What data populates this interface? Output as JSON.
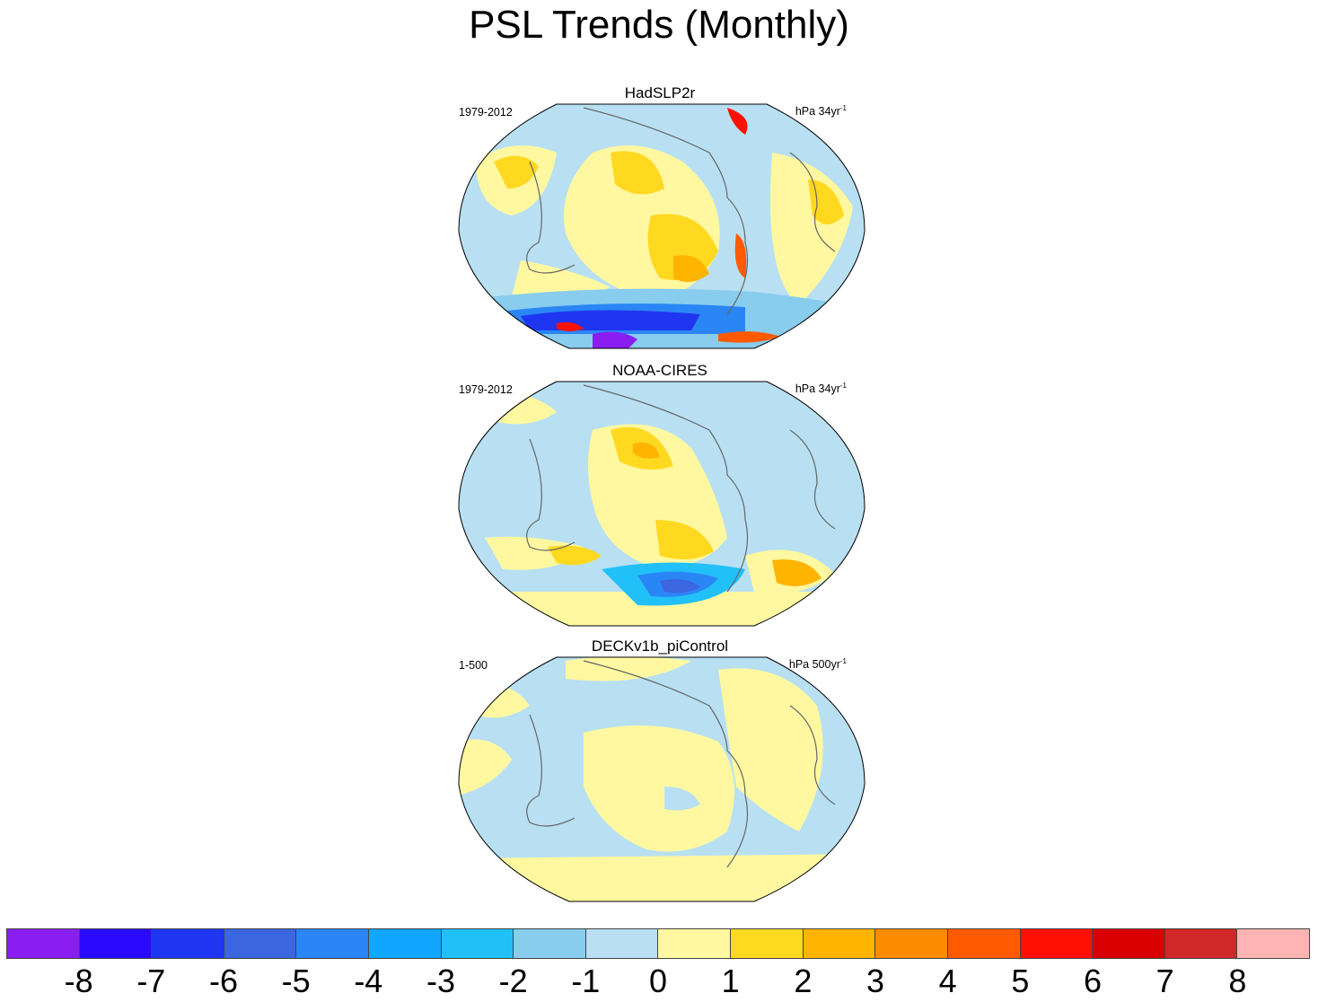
{
  "title": "PSL Trends (Monthly)",
  "panels": [
    {
      "name": "HadSLP2r",
      "period": "1979-2012",
      "units_base": "hPa 34yr",
      "units_exp": "-1"
    },
    {
      "name": "NOAA-CIRES",
      "period": "1979-2012",
      "units_base": "hPa 34yr",
      "units_exp": "-1"
    },
    {
      "name": "DECKv1b_piControl",
      "period": "1-500",
      "units_base": "hPa 500yr",
      "units_exp": "-1"
    }
  ],
  "colorbar": {
    "colors": [
      "#8a1ef0",
      "#2a0aff",
      "#1f36f0",
      "#3a66e0",
      "#2a86f5",
      "#11a6ff",
      "#22c0f8",
      "#88ccee",
      "#b8e0f2",
      "#fff8a0",
      "#ffd820",
      "#ffb400",
      "#ff8c00",
      "#ff5a00",
      "#ff1000",
      "#d80000",
      "#d02828",
      "#ffb4b4"
    ],
    "labels": [
      "-8",
      "-7",
      "-6",
      "-5",
      "-4",
      "-3",
      "-2",
      "-1",
      "0",
      "1",
      "2",
      "3",
      "4",
      "5",
      "6",
      "7",
      "8"
    ]
  },
  "colors": {
    "land_outline": "#666666",
    "neutral_neg": "#b8e0f2",
    "neutral_pos": "#fff8a0"
  }
}
